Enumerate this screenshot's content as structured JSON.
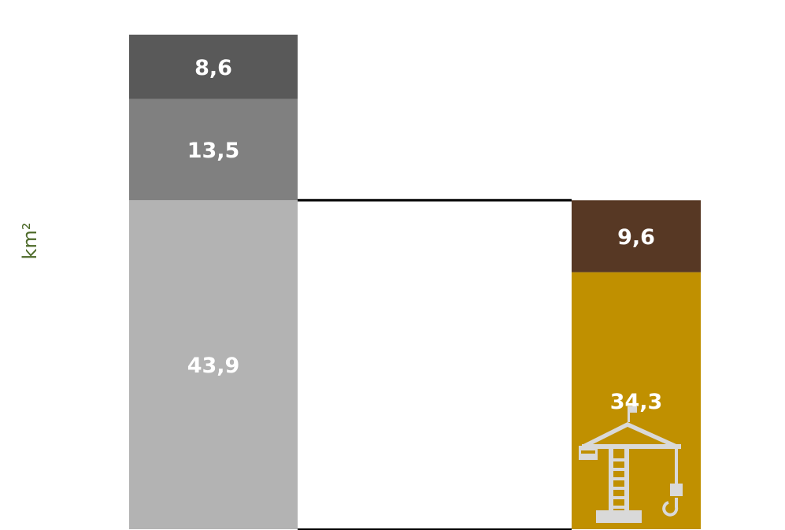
{
  "chart_data": {
    "type": "bar",
    "stacked": true,
    "ylabel": "km²",
    "bars": [
      {
        "segments": [
          {
            "value": 43.9,
            "label": "43,9",
            "color": "#b3b3b3"
          },
          {
            "value": 13.5,
            "label": "13,5",
            "color": "#808080"
          },
          {
            "value": 8.6,
            "label": "8,6",
            "color": "#595959"
          }
        ]
      },
      {
        "segments": [
          {
            "value": 34.3,
            "label": "34,3",
            "color": "#c09000"
          },
          {
            "value": 9.6,
            "label": "9,6",
            "color": "#573824"
          }
        ],
        "icon": "crane-icon"
      }
    ],
    "connector": {
      "from_value": 43.9,
      "to_value": 43.9,
      "color": "#000000"
    }
  }
}
